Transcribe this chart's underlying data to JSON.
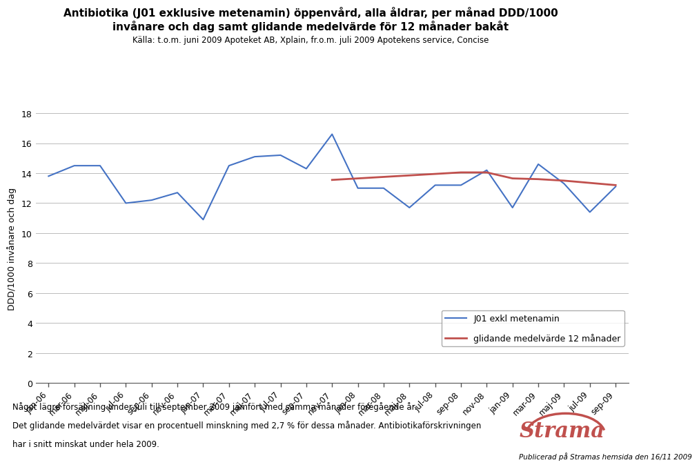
{
  "title_line1": "Antibiotika (J01 exklusive metenamin) öppenvård, alla åldrar, per månad DDD/1000",
  "title_line2": "invånare och dag samt glidande medelvärde för 12 månader bakåt",
  "subtitle": "Källa: t.o.m. juni 2009 Apoteket AB, Xplain, fr.o.m. juli 2009 Apotekens service, Concise",
  "ylabel": "DDD/1000 invånare och dag",
  "ylim": [
    0,
    18
  ],
  "yticks": [
    0,
    2,
    4,
    6,
    8,
    10,
    12,
    14,
    16,
    18
  ],
  "x_labels": [
    "jan-06",
    "mar-06",
    "maj-06",
    "jul-06",
    "sep-06",
    "nov-06",
    "jan-07",
    "mar-07",
    "maj-07",
    "jul-07",
    "sep-07",
    "nov-07",
    "jan-08",
    "mar-08",
    "maj-08",
    "jul-08",
    "sep-08",
    "nov-08",
    "jan-09",
    "mar-09",
    "maj-09",
    "jul-09",
    "sep-09"
  ],
  "blue_values": [
    13.8,
    14.5,
    14.5,
    12.0,
    12.2,
    12.7,
    10.9,
    14.5,
    15.1,
    15.2,
    14.3,
    16.6,
    13.0,
    13.0,
    11.7,
    13.2,
    13.2,
    14.2,
    11.7,
    14.6,
    13.3,
    11.4,
    13.1
  ],
  "red_values": [
    null,
    null,
    null,
    null,
    null,
    null,
    null,
    null,
    null,
    null,
    null,
    13.55,
    13.65,
    13.75,
    13.85,
    13.95,
    14.05,
    14.05,
    13.65,
    13.6,
    13.5,
    13.35,
    13.2
  ],
  "blue_color": "#4472C4",
  "red_color": "#C0504D",
  "legend_label_blue": "J01 exkl metenamin",
  "legend_label_red": "glidande medelvärde 12 månader",
  "footer_line1": "Något lägre försäljning under juli till september 2009 jämfört med samma månader föregående år.",
  "footer_line2": "Det glidande medelvärdet visar en procentuell minskning med 2,7 % för dessa månader. Antibiotikaförskrivningen",
  "footer_line3": "har i snitt minskat under hela 2009.",
  "footer_right": "Publicerad på Stramas hemsida den 16/11 2009",
  "strama_text": "Strama",
  "strama_color": "#C0504D"
}
